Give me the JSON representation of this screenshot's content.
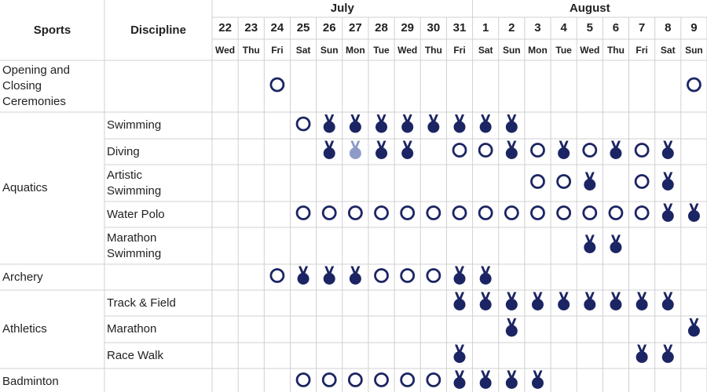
{
  "header": {
    "sports": "Sports",
    "discipline": "Discipline",
    "months": [
      "July",
      "August"
    ],
    "dates": [
      "22",
      "23",
      "24",
      "25",
      "26",
      "27",
      "28",
      "29",
      "30",
      "31",
      "1",
      "2",
      "3",
      "4",
      "5",
      "6",
      "7",
      "8",
      "9"
    ],
    "weekdays": [
      "Wed",
      "Thu",
      "Fri",
      "Sat",
      "Sun",
      "Mon",
      "Tue",
      "Wed",
      "Thu",
      "Fri",
      "Sat",
      "Sun",
      "Mon",
      "Tue",
      "Wed",
      "Thu",
      "Fri",
      "Sat",
      "Sun"
    ]
  },
  "sports": [
    {
      "name": "Opening and Closing Ceremonies",
      "disciplines": []
    },
    {
      "name": "Aquatics",
      "disciplines": [
        "Swimming",
        "Diving",
        "Artistic Swimming",
        "Water Polo",
        "Marathon Swimming"
      ]
    },
    {
      "name": "Archery",
      "disciplines": []
    },
    {
      "name": "Athletics",
      "disciplines": [
        "Track & Field",
        "Marathon",
        "Race Walk"
      ]
    },
    {
      "name": "Badminton",
      "disciplines": []
    }
  ]
}
